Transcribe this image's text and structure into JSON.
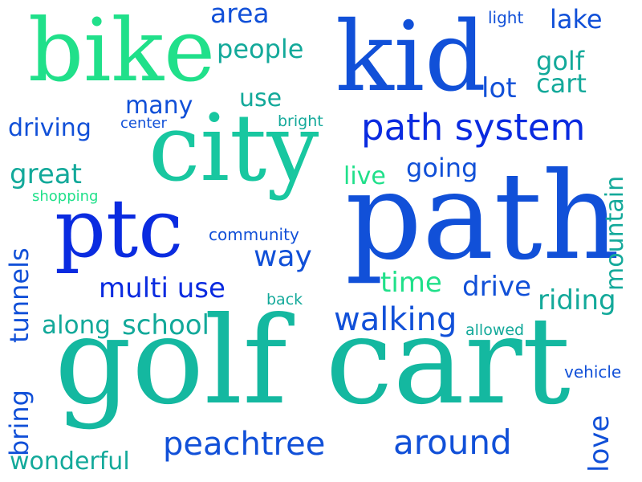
{
  "colors": {
    "blue": "#0A2BE0",
    "royal": "#1150D8",
    "teal": "#14B8A0",
    "mint": "#20E08A",
    "sea": "#13A99A",
    "aqua": "#18C7A0"
  },
  "words": {
    "golf_cart": "golf cart",
    "path": "path",
    "city": "city",
    "kid": "kid",
    "bike": "bike",
    "ptc": "ptc",
    "path_system": "path system",
    "peachtree": "peachtree",
    "around": "around",
    "walking": "walking",
    "multi_use": "multi use",
    "school": "school",
    "along": "along",
    "wonderful": "wonderful",
    "people": "people",
    "area": "area",
    "lake": "lake",
    "golf_cart_small": "golf cart",
    "lot": "lot",
    "many": "many",
    "use": "use",
    "driving": "driving",
    "center": "center",
    "bright": "bright",
    "great": "great",
    "shopping": "shopping",
    "live": "live",
    "going": "going",
    "community": "community",
    "way": "way",
    "time": "time",
    "drive": "drive",
    "riding": "riding",
    "back": "back",
    "allowed": "allowed",
    "vehicle": "vehicle",
    "light": "light",
    "tunnels": "tunnels",
    "bring": "bring",
    "mountain": "mountain",
    "love": "love"
  }
}
